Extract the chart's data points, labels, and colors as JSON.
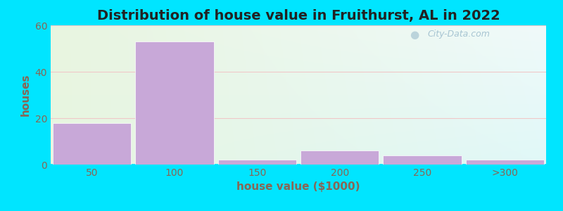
{
  "title": "Distribution of house value in Fruithurst, AL in 2022",
  "xlabel": "house value ($1000)",
  "ylabel": "houses",
  "categories": [
    "50",
    "100",
    "150",
    "200",
    "250",
    ">300"
  ],
  "values": [
    18,
    53,
    2,
    6,
    4,
    2
  ],
  "bar_color": "#c8a8d8",
  "bar_edge_color": "#ffffff",
  "ylim": [
    0,
    60
  ],
  "yticks": [
    0,
    20,
    40,
    60
  ],
  "background_outer": "#00e5ff",
  "bg_top_left": "#e8f5e0",
  "bg_top_right": "#f0fafa",
  "bg_bottom_right": "#e0f8f8",
  "grid_color": "#f0c8c8",
  "title_fontsize": 14,
  "label_fontsize": 11,
  "tick_fontsize": 10,
  "tick_color": "#886655",
  "label_color": "#886655",
  "title_color": "#222222",
  "watermark_text": "City-Data.com"
}
